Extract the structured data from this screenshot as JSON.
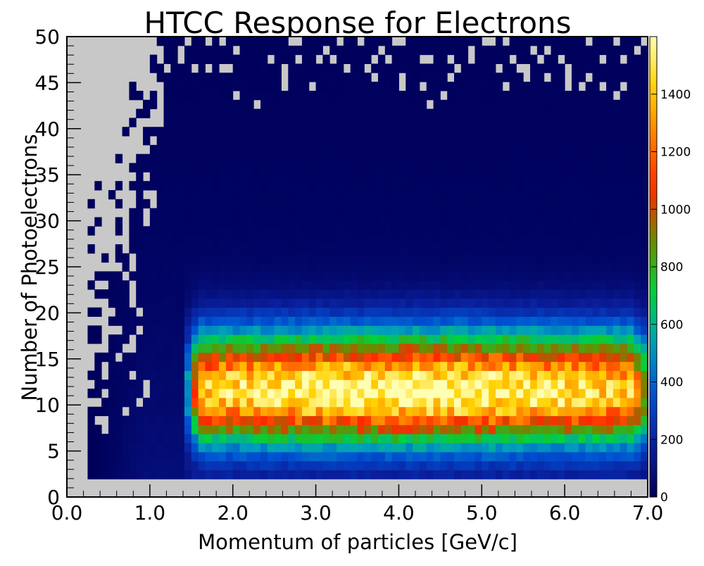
{
  "chart_data": {
    "type": "heatmap",
    "title": "HTCC Response for Electrons",
    "xlabel": "Momentum of particles [GeV/c]",
    "ylabel": "Number of Photoelectrons",
    "xlim": [
      0.0,
      7.0
    ],
    "ylim": [
      0,
      50
    ],
    "zlim": [
      0,
      1600
    ],
    "x_ticks": [
      "0.0",
      "1.0",
      "2.0",
      "3.0",
      "4.0",
      "5.0",
      "6.0",
      "7.0"
    ],
    "y_ticks": [
      "0",
      "5",
      "10",
      "15",
      "20",
      "25",
      "30",
      "35",
      "40",
      "45",
      "50"
    ],
    "z_ticks": [
      "0",
      "200",
      "400",
      "600",
      "800",
      "1000",
      "1200",
      "1400"
    ],
    "empty_bin_color": "#c8c8c8",
    "palette": [
      "#00005a",
      "#0a1e9b",
      "#0050d2",
      "#009fbb",
      "#00d23c",
      "#6a8c00",
      "#ff2800",
      "#ff7a00",
      "#ffd200",
      "#ffffb4"
    ],
    "bins": {
      "nx": 84,
      "ny": 51
    },
    "peak": {
      "momentum": 4.2,
      "photoelectrons": 11.5,
      "max_counts": 1560
    },
    "band": {
      "momentum_range": [
        1.4,
        7.0
      ],
      "photoelectron_range": [
        7,
        18
      ]
    },
    "grid": false,
    "legend": "colorbar-right"
  }
}
